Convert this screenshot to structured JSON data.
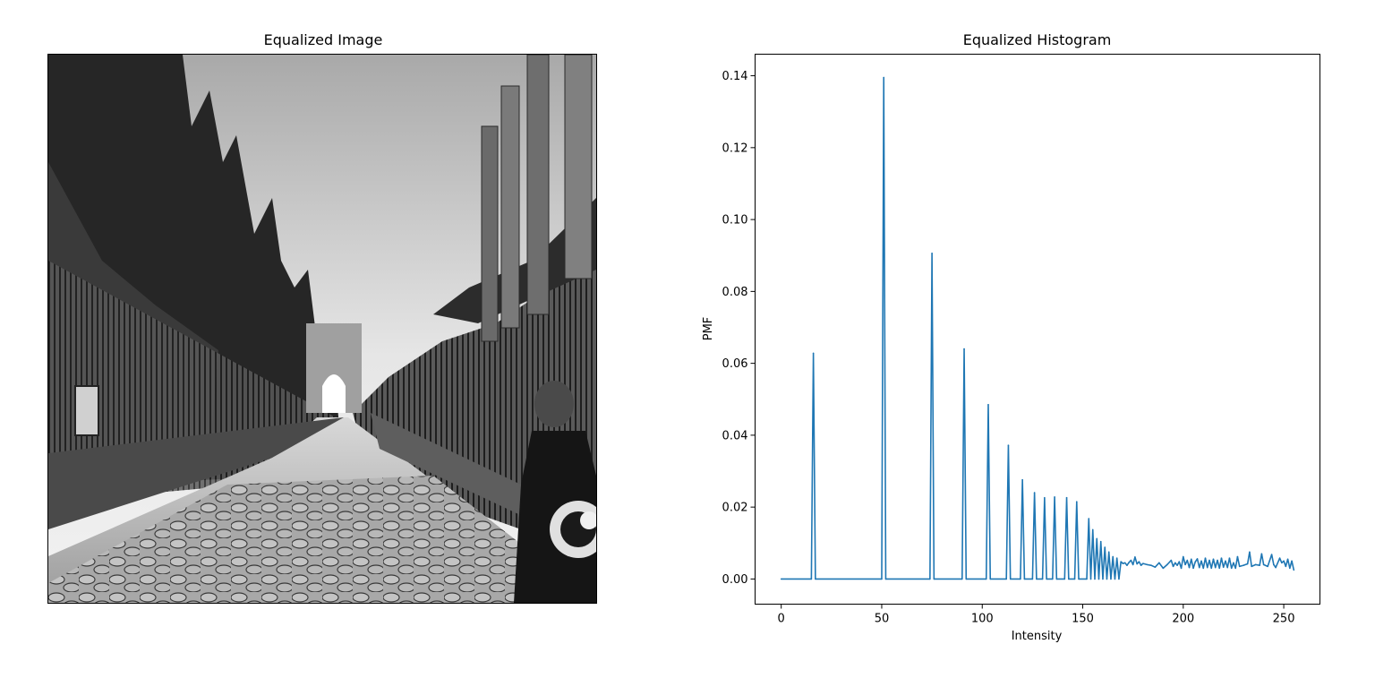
{
  "image_panel": {
    "title": "Equalized Image",
    "content_icon": "equalized-grayscale-street-photo"
  },
  "chart_data": {
    "type": "line",
    "title": "Equalized Histogram",
    "xlabel": "Intensity",
    "ylabel": "PMF",
    "xlim": [
      -13,
      268
    ],
    "ylim": [
      -0.007,
      0.146
    ],
    "xticks": [
      0,
      50,
      100,
      150,
      200,
      250
    ],
    "yticks": [
      0.0,
      0.02,
      0.04,
      0.06,
      0.08,
      0.1,
      0.12,
      0.14
    ],
    "xtick_labels": [
      "0",
      "50",
      "100",
      "150",
      "200",
      "250"
    ],
    "ytick_labels": [
      "0.00",
      "0.02",
      "0.04",
      "0.06",
      "0.08",
      "0.10",
      "0.12",
      "0.14"
    ],
    "grid": false,
    "line_color": "#1f77b4",
    "series": [
      {
        "x": [
          0,
          15,
          16,
          17,
          50,
          51,
          52,
          74,
          75,
          76,
          90,
          91,
          92,
          102,
          103,
          104,
          112,
          113,
          114,
          119,
          120,
          121,
          125,
          126,
          127,
          130,
          131,
          132,
          135,
          136,
          137,
          141,
          142,
          143,
          146,
          147,
          148,
          152,
          153,
          154,
          155,
          156,
          157,
          158,
          159,
          160,
          161,
          162,
          163,
          164,
          165,
          166,
          167,
          168,
          169,
          170,
          171,
          172,
          173,
          174,
          175,
          176,
          177,
          178,
          179,
          180,
          182,
          184,
          186,
          188,
          190,
          192,
          194,
          195,
          196,
          197,
          198,
          199,
          200,
          201,
          202,
          203,
          204,
          205,
          206,
          207,
          208,
          209,
          210,
          211,
          212,
          213,
          214,
          215,
          216,
          217,
          218,
          219,
          220,
          221,
          222,
          223,
          224,
          225,
          226,
          227,
          228,
          230,
          232,
          233,
          234,
          236,
          238,
          239,
          240,
          242,
          244,
          245,
          246,
          248,
          249,
          250,
          251,
          252,
          253,
          254,
          255
        ],
        "y": [
          0,
          0,
          0.0628,
          0,
          0,
          0.1395,
          0,
          0,
          0.0906,
          0,
          0,
          0.064,
          0,
          0,
          0.0485,
          0,
          0,
          0.0372,
          0,
          0,
          0.0276,
          0,
          0,
          0.024,
          0,
          0,
          0.0226,
          0,
          0,
          0.0228,
          0,
          0,
          0.0226,
          0,
          0,
          0.0215,
          0,
          0,
          0.0168,
          0,
          0.0137,
          0,
          0.0112,
          0,
          0.0104,
          0,
          0.0088,
          0,
          0.0075,
          0,
          0.0062,
          0,
          0.0058,
          0,
          0.0048,
          0.0043,
          0.0045,
          0.0038,
          0.0046,
          0.0052,
          0.004,
          0.0061,
          0.0042,
          0.0048,
          0.0038,
          0.0043,
          0.004,
          0.0038,
          0.0033,
          0.0045,
          0.003,
          0.004,
          0.0052,
          0.0035,
          0.0045,
          0.0038,
          0.0048,
          0.003,
          0.0062,
          0.004,
          0.0052,
          0.0032,
          0.0055,
          0.003,
          0.0048,
          0.0056,
          0.0032,
          0.005,
          0.003,
          0.0058,
          0.0032,
          0.0052,
          0.003,
          0.0055,
          0.0032,
          0.0052,
          0.003,
          0.0058,
          0.0033,
          0.005,
          0.0032,
          0.0058,
          0.003,
          0.0045,
          0.003,
          0.0062,
          0.0035,
          0.0038,
          0.0042,
          0.0075,
          0.0035,
          0.004,
          0.0038,
          0.007,
          0.004,
          0.0035,
          0.0068,
          0.004,
          0.0032,
          0.0058,
          0.0045,
          0.005,
          0.0035,
          0.0055,
          0.003,
          0.005,
          0.0025
        ]
      }
    ]
  }
}
